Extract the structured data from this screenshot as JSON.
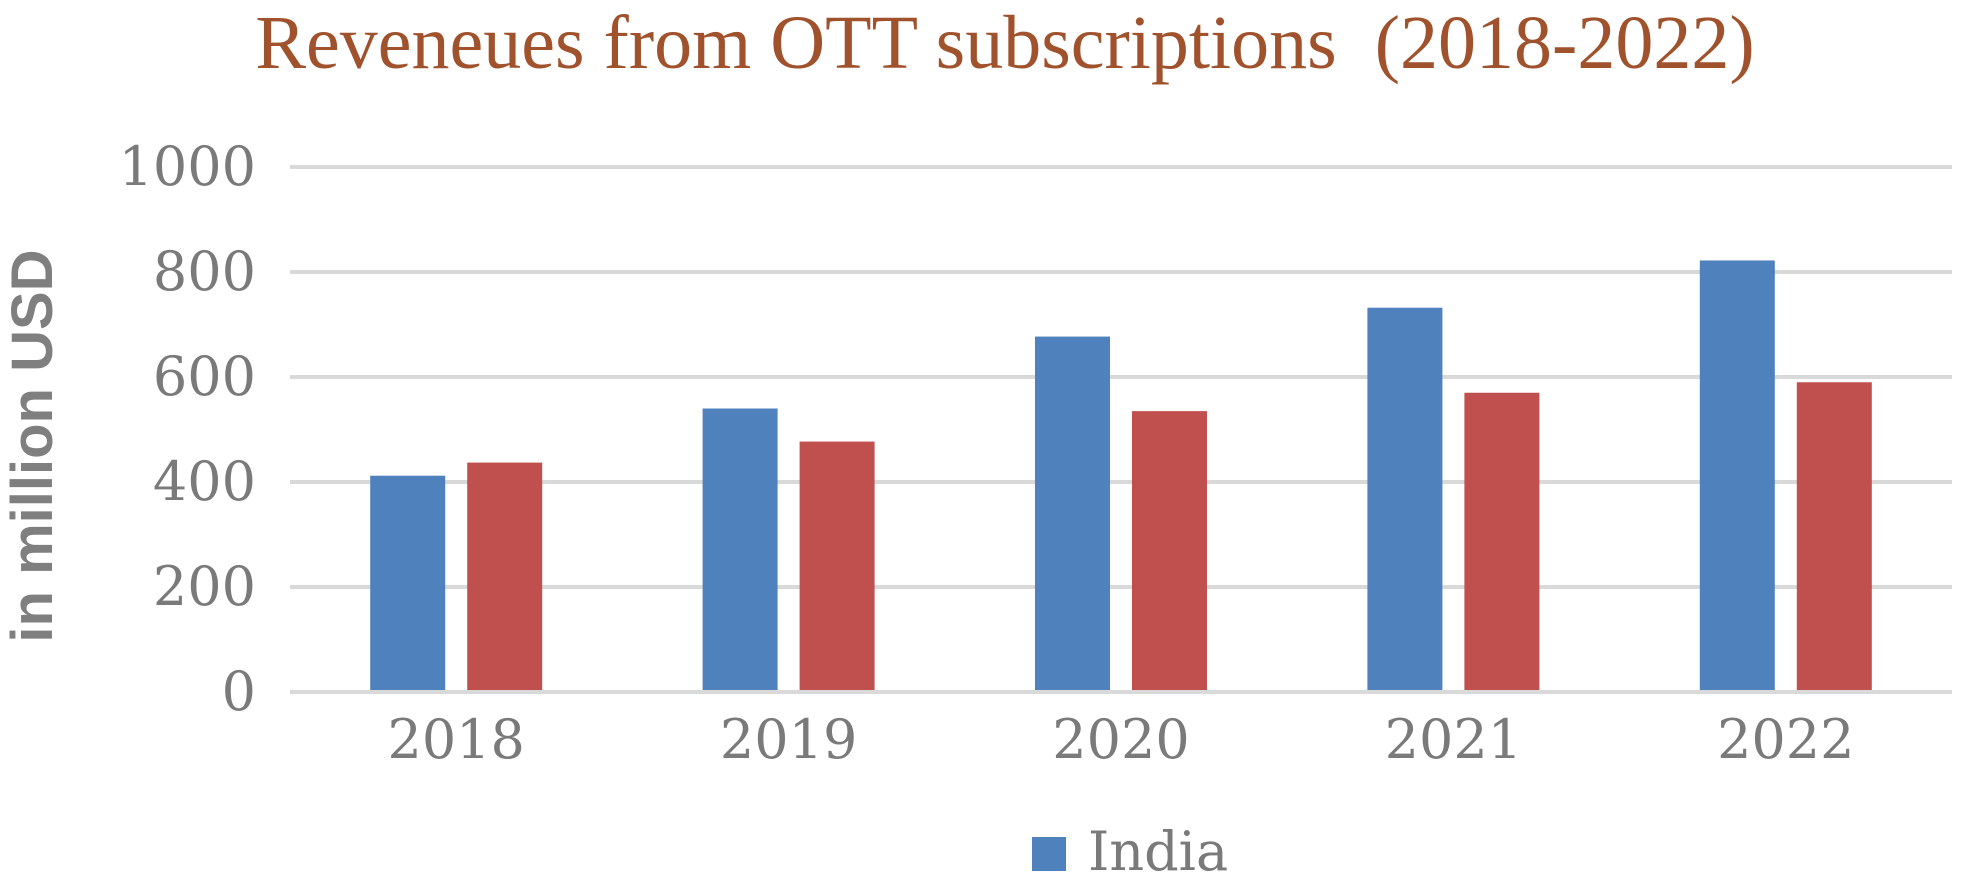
{
  "chart_data": {
    "type": "bar",
    "title": "Reveneues from OTT subscriptions  (2018-2022)",
    "ylabel": "in million USD",
    "xlabel": "",
    "categories": [
      "2018",
      "2019",
      "2020",
      "2021",
      "2022"
    ],
    "series": [
      {
        "name": "India",
        "color": "#4f81bd",
        "values": [
          412,
          540,
          677,
          732,
          822
        ]
      },
      {
        "color": "#c0504d",
        "values": [
          437,
          477,
          535,
          570,
          590
        ]
      }
    ],
    "ylim": [
      0,
      1000
    ],
    "yticks": [
      "0",
      "200",
      "400",
      "600",
      "800",
      "1000"
    ],
    "grid": true,
    "legend": "bottom",
    "title_color": "#a0522d"
  }
}
